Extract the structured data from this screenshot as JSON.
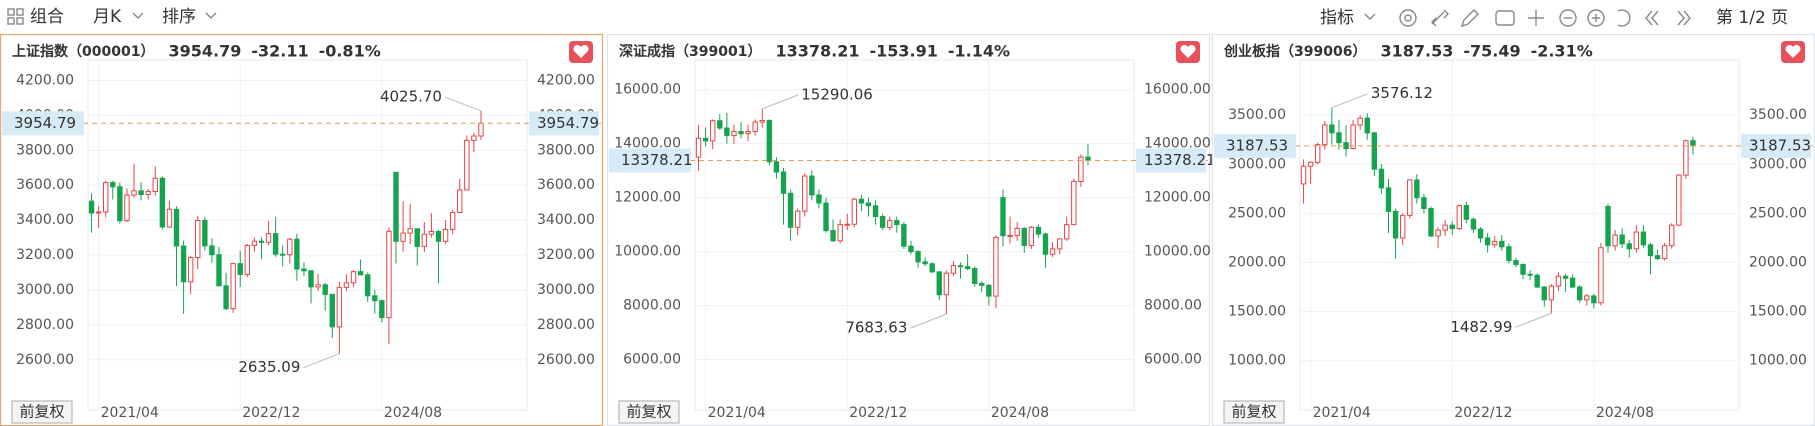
{
  "toolbar": {
    "combo": "组合",
    "period": "月K",
    "sort": "排序",
    "indicator": "指标",
    "page": "第 1/2 页"
  },
  "chart_data": [
    {
      "type": "candlestick",
      "title": "上证指数（000001）",
      "change": -32.11,
      "change_pct": "-0.81%",
      "adjust_label": "前复权",
      "categories": [
        null,
        "2021/04",
        null,
        null,
        null,
        null,
        null,
        null,
        null,
        null,
        null,
        null,
        null,
        null,
        null,
        null,
        null,
        null,
        null,
        null,
        null,
        "2022/12",
        null,
        null,
        null,
        null,
        null,
        null,
        null,
        null,
        null,
        null,
        null,
        null,
        null,
        null,
        null,
        null,
        null,
        null,
        null,
        "2024/08",
        null,
        null,
        null,
        null,
        null,
        null,
        null,
        null,
        null,
        null,
        null,
        null,
        null,
        null
      ],
      "open": [
        3509,
        3441,
        3447,
        3615,
        3591,
        3397,
        3544,
        3568,
        3547,
        3564,
        3640,
        3361,
        3462,
        3252,
        3047,
        3186,
        3398,
        3253,
        3202,
        3024,
        2893,
        3151,
        3089,
        3255,
        3279,
        3273,
        3323,
        3205,
        3202,
        3291,
        3120,
        3110,
        3018,
        3030,
        2975,
        2789,
        3015,
        3041,
        3105,
        3087,
        2967,
        2939,
        2842,
        3674,
        3279,
        3326,
        3351,
        3250,
        3320,
        3335,
        3279,
        3347,
        3444,
        3573,
        3857,
        3882
      ],
      "high": [
        3555,
        3481,
        3625,
        3626,
        3616,
        3581,
        3723,
        3617,
        3580,
        3708,
        3652,
        3513,
        3479,
        3283,
        3195,
        3424,
        3419,
        3296,
        3247,
        3099,
        3155,
        3226,
        3264,
        3300,
        3301,
        3396,
        3418,
        3255,
        3298,
        3322,
        3158,
        3114,
        3091,
        3040,
        2977,
        3048,
        3091,
        3113,
        3175,
        3100,
        3000,
        2946,
        3358,
        3674,
        3509,
        3494,
        3351,
        3390,
        3440,
        3346,
        3400,
        3458,
        3637,
        3884,
        3900,
        4025.7
      ],
      "low": [
        3328,
        3355,
        3416,
        3518,
        3381,
        3389,
        3530,
        3513,
        3517,
        3540,
        3346,
        3356,
        3023,
        2863,
        2976,
        3119,
        3227,
        3155,
        3021,
        2885,
        2869,
        3017,
        3073,
        3217,
        3177,
        3255,
        3190,
        3134,
        3152,
        3053,
        3080,
        2923,
        2996,
        2882,
        2724,
        2635.09,
        2995,
        3016,
        3085,
        2932,
        2865,
        2815,
        2689,
        3152,
        3220,
        3263,
        3140,
        3216,
        3300,
        3040,
        3262,
        3320,
        3440,
        3573,
        3790,
        3860
      ],
      "close": [
        3441,
        3447,
        3615,
        3591,
        3397,
        3544,
        3568,
        3547,
        3564,
        3640,
        3361,
        3462,
        3252,
        3047,
        3186,
        3398,
        3253,
        3202,
        3024,
        2893,
        3151,
        3089,
        3255,
        3279,
        3273,
        3323,
        3205,
        3202,
        3291,
        3120,
        3110,
        3018,
        3030,
        2975,
        2789,
        3015,
        3041,
        3105,
        3087,
        2967,
        2939,
        2842,
        3336,
        3279,
        3326,
        3351,
        3250,
        3320,
        3335,
        3279,
        3347,
        3444,
        3573,
        3857,
        3882,
        3954.79
      ],
      "ylim": [
        2370,
        4260
      ],
      "yticks": [
        {
          "value": 2600,
          "label": "2600.00"
        },
        {
          "value": 2800,
          "label": "2800.00"
        },
        {
          "value": 3000,
          "label": "3000.00"
        },
        {
          "value": 3200,
          "label": "3200.00"
        },
        {
          "value": 3400,
          "label": "3400.00"
        },
        {
          "value": 3600,
          "label": "3600.00"
        },
        {
          "value": 3800,
          "label": "3800.00"
        },
        {
          "value": 4000,
          "label": "4000.00"
        },
        {
          "value": 4200,
          "label": "4200.00"
        }
      ],
      "max_label": {
        "value": 4025.7,
        "label": "4025.70"
      },
      "min_label": {
        "value": 2635.09,
        "label": "2635.09"
      },
      "up_color": "#e5454a",
      "down_color": "#16a34f",
      "selected": true
    },
    {
      "type": "candlestick",
      "title": "深证成指（399001）",
      "change": -153.91,
      "change_pct": "-1.14%",
      "adjust_label": "前复权",
      "categories": [
        null,
        "2021/04",
        null,
        null,
        null,
        null,
        null,
        null,
        null,
        null,
        null,
        null,
        null,
        null,
        null,
        null,
        null,
        null,
        null,
        null,
        null,
        "2022/12",
        null,
        null,
        null,
        null,
        null,
        null,
        null,
        null,
        null,
        null,
        null,
        null,
        null,
        null,
        null,
        null,
        null,
        null,
        null,
        "2024/08",
        null,
        null,
        null,
        null,
        null,
        null,
        null,
        null,
        null,
        null,
        null,
        null,
        null,
        null
      ],
      "open": [
        13500,
        14200,
        14100,
        14850,
        14580,
        14300,
        14450,
        14370,
        14450,
        14800,
        14860,
        13330,
        12950,
        12160,
        10900,
        11500,
        12800,
        12100,
        11800,
        10780,
        10400,
        11000,
        11015,
        11940,
        11800,
        11700,
        11300,
        10900,
        11150,
        11000,
        10200,
        10000,
        9620,
        9550,
        9250,
        8400,
        9200,
        9480,
        9440,
        9370,
        8820,
        8750,
        8350,
        12000,
        10590,
        10600,
        10860,
        10230,
        10900,
        10650,
        9900,
        10100,
        10470,
        11000,
        12600,
        13500
      ],
      "high": [
        14700,
        14600,
        14900,
        15100,
        15150,
        14700,
        14800,
        14700,
        14900,
        15290.06,
        14900,
        13500,
        13100,
        12300,
        11600,
        12900,
        13000,
        12300,
        12000,
        11200,
        11200,
        11400,
        12000,
        12100,
        12000,
        11900,
        11400,
        11300,
        11300,
        11100,
        10400,
        10050,
        9800,
        9600,
        9260,
        9300,
        9650,
        9600,
        9900,
        9450,
        8900,
        8800,
        10600,
        12300,
        11300,
        11100,
        10900,
        10950,
        11000,
        10700,
        10350,
        10500,
        11300,
        12700,
        13600,
        14000
      ],
      "low": [
        13000,
        13900,
        13800,
        14500,
        14000,
        14000,
        14200,
        14100,
        14300,
        14600,
        13200,
        12700,
        11000,
        10400,
        10600,
        11300,
        11900,
        11600,
        10700,
        10350,
        10300,
        10800,
        10900,
        11500,
        11300,
        11000,
        10800,
        10800,
        10700,
        10100,
        9900,
        9400,
        9450,
        9200,
        8200,
        7683.63,
        9100,
        9000,
        9300,
        8700,
        8500,
        8000,
        7900,
        10200,
        10300,
        10400,
        9950,
        10100,
        10500,
        9400,
        9800,
        9900,
        10400,
        11000,
        12400,
        13200
      ],
      "close": [
        14200,
        14100,
        14850,
        14580,
        14300,
        14450,
        14370,
        14450,
        14800,
        14860,
        13330,
        12950,
        12160,
        10900,
        11500,
        12800,
        12100,
        11800,
        10780,
        10400,
        11000,
        11015,
        11940,
        11800,
        11700,
        11300,
        10900,
        11150,
        11000,
        10200,
        10000,
        9620,
        9550,
        9250,
        8400,
        9200,
        9480,
        9440,
        9370,
        8820,
        8750,
        8350,
        10530,
        10590,
        10600,
        10860,
        10230,
        10900,
        10650,
        9900,
        10100,
        10470,
        11000,
        12600,
        13500,
        13378.21
      ],
      "ylim": [
        4500,
        16730
      ],
      "yticks": [
        {
          "value": 6000,
          "label": "6000.00"
        },
        {
          "value": 8000,
          "label": "8000.00"
        },
        {
          "value": 10000,
          "label": "10000.00"
        },
        {
          "value": 12000,
          "label": "12000.00"
        },
        {
          "value": 14000,
          "label": "14000.00"
        },
        {
          "value": 16000,
          "label": "16000.00"
        }
      ],
      "max_label": {
        "value": 15290.06,
        "label": "15290.06"
      },
      "min_label": {
        "value": 7683.63,
        "label": "7683.63"
      },
      "up_color": "#e5454a",
      "down_color": "#16a34f",
      "selected": false
    },
    {
      "type": "candlestick",
      "title": "创业板指（399006）",
      "change": -75.49,
      "change_pct": "-2.31%",
      "adjust_label": "前复权",
      "categories": [
        null,
        "2021/04",
        null,
        null,
        null,
        null,
        null,
        null,
        null,
        null,
        null,
        null,
        null,
        null,
        null,
        null,
        null,
        null,
        null,
        null,
        null,
        "2022/12",
        null,
        null,
        null,
        null,
        null,
        null,
        null,
        null,
        null,
        null,
        null,
        null,
        null,
        null,
        null,
        null,
        null,
        null,
        null,
        "2024/08",
        null,
        null,
        null,
        null,
        null,
        null,
        null,
        null,
        null,
        null,
        null,
        null,
        null,
        null
      ],
      "open": [
        2800,
        2980,
        3020,
        3200,
        3400,
        3320,
        3220,
        3160,
        3400,
        3470,
        3320,
        2950,
        2760,
        2520,
        2250,
        2480,
        2840,
        2660,
        2550,
        2270,
        2330,
        2380,
        2345,
        2580,
        2440,
        2340,
        2250,
        2180,
        2215,
        2160,
        2020,
        1980,
        1880,
        1870,
        1750,
        1620,
        1760,
        1860,
        1840,
        1750,
        1620,
        1660,
        1590,
        2570,
        2170,
        2280,
        2190,
        2140,
        2310,
        2180,
        2070,
        2040,
        2170,
        2380,
        2890,
        3240
      ],
      "high": [
        3050,
        3030,
        3220,
        3440,
        3576.12,
        3450,
        3400,
        3450,
        3500,
        3520,
        3330,
        3000,
        2850,
        2550,
        2500,
        2850,
        2900,
        2700,
        2570,
        2360,
        2430,
        2420,
        2590,
        2620,
        2460,
        2360,
        2300,
        2270,
        2280,
        2190,
        2050,
        1990,
        1920,
        1890,
        1760,
        1780,
        1900,
        1880,
        1880,
        1770,
        1680,
        1680,
        2200,
        2600,
        2330,
        2350,
        2230,
        2380,
        2380,
        2200,
        2130,
        2200,
        2400,
        2900,
        3250,
        3280
      ],
      "low": [
        2600,
        2800,
        3000,
        3150,
        3200,
        3150,
        3080,
        3150,
        3350,
        3250,
        2880,
        2700,
        2300,
        2040,
        2180,
        2450,
        2600,
        2500,
        2260,
        2150,
        2270,
        2280,
        2330,
        2400,
        2300,
        2200,
        2100,
        2150,
        2120,
        1990,
        1950,
        1830,
        1820,
        1740,
        1550,
        1482.99,
        1710,
        1700,
        1740,
        1590,
        1560,
        1530,
        1560,
        2100,
        2120,
        2150,
        2050,
        2100,
        2150,
        1880,
        2020,
        2020,
        2140,
        2370,
        2850,
        3100
      ],
      "close": [
        2980,
        3020,
        3200,
        3400,
        3320,
        3220,
        3160,
        3400,
        3470,
        3320,
        2950,
        2760,
        2520,
        2250,
        2480,
        2840,
        2660,
        2550,
        2270,
        2330,
        2380,
        2345,
        2580,
        2440,
        2340,
        2250,
        2180,
        2215,
        2160,
        2020,
        1980,
        1880,
        1870,
        1750,
        1620,
        1760,
        1860,
        1840,
        1750,
        1620,
        1660,
        1590,
        2150,
        2170,
        2280,
        2190,
        2140,
        2310,
        2180,
        2070,
        2040,
        2170,
        2380,
        2890,
        3240,
        3187.53
      ],
      "ylim": [
        600,
        3960
      ],
      "yticks": [
        {
          "value": 1000,
          "label": "1000.00"
        },
        {
          "value": 1500,
          "label": "1500.00"
        },
        {
          "value": 2000,
          "label": "2000.00"
        },
        {
          "value": 2500,
          "label": "2500.00"
        },
        {
          "value": 3000,
          "label": "3000.00"
        },
        {
          "value": 3500,
          "label": "3500.00"
        }
      ],
      "max_label": {
        "value": 3576.12,
        "label": "3576.12"
      },
      "min_label": {
        "value": 1482.99,
        "label": "1482.99"
      },
      "up_color": "#e5454a",
      "down_color": "#16a34f",
      "selected": false
    }
  ]
}
